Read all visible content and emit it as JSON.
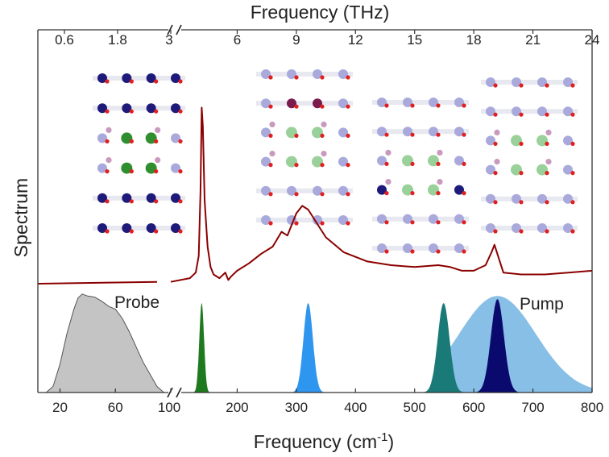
{
  "chart_data": {
    "type": "area",
    "title": "",
    "top_axis": {
      "label": "Frequency (THz)",
      "tick_labels": [
        "0.6",
        "1.8",
        "3",
        "6",
        "9",
        "12",
        "15",
        "18",
        "21",
        "24"
      ],
      "break_after": "3"
    },
    "bottom_axis": {
      "label_main": "Frequency (cm",
      "label_sup": "-1",
      "label_close": ")",
      "tick_labels": [
        "20",
        "60",
        "100",
        "200",
        "300",
        "400",
        "500",
        "600",
        "700",
        "800"
      ],
      "break_after": "100"
    },
    "ylabel": "Spectrum",
    "grid": false,
    "spectrum": {
      "color": "#8b0000",
      "x": [
        100,
        120,
        130,
        135,
        138,
        140,
        142,
        145,
        150,
        155,
        160,
        170,
        180,
        185,
        190,
        200,
        220,
        240,
        260,
        275,
        285,
        290,
        300,
        310,
        320,
        330,
        340,
        350,
        380,
        420,
        460,
        500,
        540,
        560,
        580,
        600,
        620,
        630,
        635,
        640,
        650,
        680,
        720,
        760,
        800
      ],
      "y": [
        0.01,
        0.03,
        0.06,
        0.15,
        0.5,
        0.95,
        0.85,
        0.45,
        0.2,
        0.09,
        0.05,
        0.03,
        0.06,
        0.02,
        0.04,
        0.07,
        0.11,
        0.16,
        0.2,
        0.28,
        0.26,
        0.3,
        0.38,
        0.42,
        0.4,
        0.35,
        0.3,
        0.25,
        0.17,
        0.12,
        0.1,
        0.09,
        0.1,
        0.09,
        0.07,
        0.07,
        0.1,
        0.17,
        0.21,
        0.16,
        0.06,
        0.05,
        0.05,
        0.06,
        0.07
      ]
    },
    "probe": {
      "label": "Probe",
      "label_color": "#1a1a8c",
      "fill": "#c4c4c4",
      "stroke": "#555555",
      "x": [
        10,
        15,
        20,
        25,
        30,
        33,
        36,
        40,
        45,
        50,
        55,
        60,
        65,
        70,
        75,
        80,
        85,
        90,
        95
      ],
      "y": [
        0.0,
        0.06,
        0.28,
        0.58,
        0.82,
        0.93,
        0.97,
        0.95,
        0.94,
        0.9,
        0.85,
        0.82,
        0.73,
        0.6,
        0.45,
        0.3,
        0.18,
        0.06,
        0.0
      ]
    },
    "pump": {
      "label": "Pump",
      "label_color": "#1a1a8c",
      "fill": "#87bfe6",
      "center": 640,
      "width": 65,
      "amplitude": 0.95,
      "range": [
        540,
        800
      ]
    },
    "narrow_pulses": [
      {
        "center": 140,
        "width": 4,
        "amplitude": 0.88,
        "color": "#1f7a1f"
      },
      {
        "center": 320,
        "width": 8,
        "amplitude": 0.88,
        "color": "#2f96f0"
      },
      {
        "center": 549,
        "width": 10,
        "amplitude": 0.88,
        "color": "#1a7a78"
      },
      {
        "center": 640,
        "width": 11,
        "amplitude": 0.92,
        "color": "#0a0a6e"
      }
    ],
    "insets": [
      {
        "mode": "mode-1",
        "highlight": "#1e1a7a",
        "accent": "#2f8f2f",
        "pink": "#c89abd"
      },
      {
        "mode": "mode-2",
        "highlight": "#7a1a4d",
        "accent": "#9ad09a",
        "pink": "#c89abd"
      },
      {
        "mode": "mode-3",
        "highlight": "#1e1a7a",
        "accent": "#9ad09a",
        "pink": "#c89abd"
      },
      {
        "mode": "mode-4",
        "highlight": "#1e1a7a",
        "accent": "#9ad09a",
        "pink": "#c89abd"
      }
    ]
  }
}
